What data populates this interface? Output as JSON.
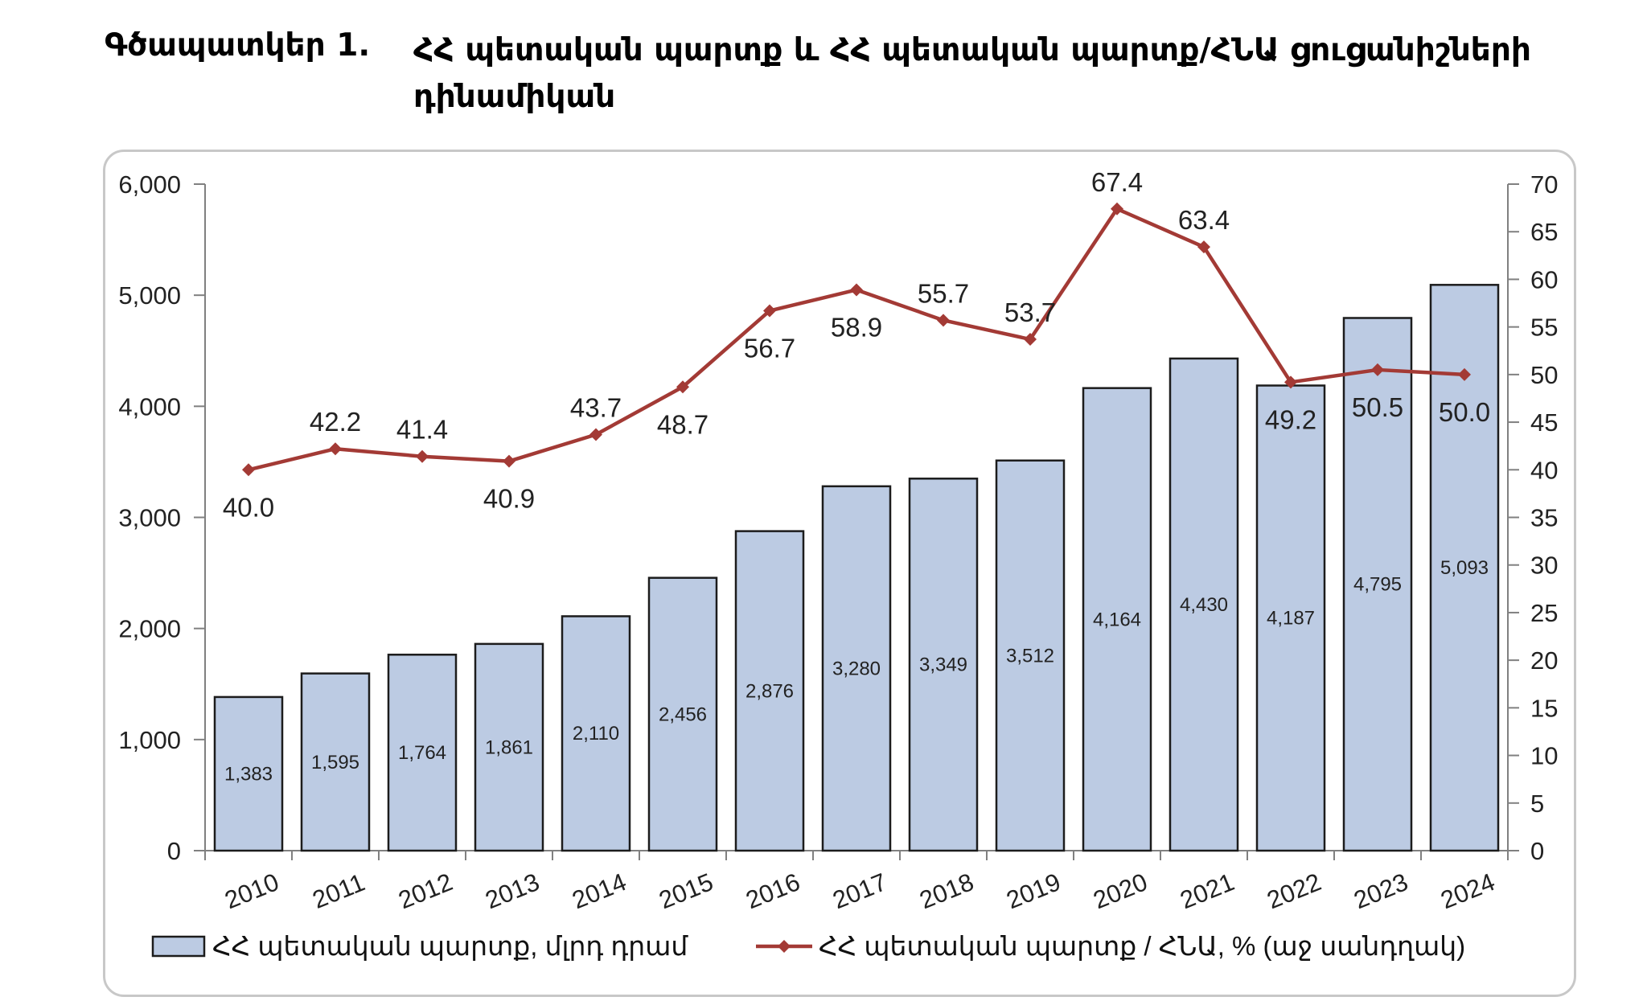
{
  "figure": {
    "label": "Գծապատկեր 1.",
    "title": "ՀՀ պետական պարտք և ՀՀ պետական պարտք/ՀՆԱ ցուցանիշների դինամիկան"
  },
  "colors": {
    "bar_fill": "#bccbe3",
    "bar_stroke": "#1c1c1c",
    "line": "#a33a35",
    "axis": "#808080",
    "frame": "#c8c8c8"
  },
  "chart_data": {
    "type": "bar+line",
    "categories": [
      "2010",
      "2011",
      "2012",
      "2013",
      "2014",
      "2015",
      "2016",
      "2017",
      "2018",
      "2019",
      "2020",
      "2021",
      "2022",
      "2023",
      "2024"
    ],
    "series": [
      {
        "name": "ՀՀ պետական պարտք, մլրդ դրամ",
        "type": "bar",
        "axis": "left",
        "values": [
          1383,
          1595,
          1764,
          1861,
          2110,
          2456,
          2876,
          3280,
          3349,
          3512,
          4164,
          4430,
          4187,
          4795,
          5093
        ],
        "labels": [
          "1,383",
          "1,595",
          "1,764",
          "1,861",
          "2,110",
          "2,456",
          "2,876",
          "3,280",
          "3,349",
          "3,512",
          "4,164",
          "4,430",
          "4,187",
          "4,795",
          "5,093"
        ]
      },
      {
        "name": "ՀՀ պետական պարտք / ՀՆԱ, % (աջ սանդղակ)",
        "type": "line",
        "axis": "right",
        "values": [
          40.0,
          42.2,
          41.4,
          40.9,
          43.7,
          48.7,
          56.7,
          58.9,
          55.7,
          53.7,
          67.4,
          63.4,
          49.2,
          50.5,
          50.0
        ],
        "labels": [
          "40.0",
          "42.2",
          "41.4",
          "40.9",
          "43.7",
          "48.7",
          "56.7",
          "58.9",
          "55.7",
          "53.7",
          "67.4",
          "63.4",
          "49.2",
          "50.5",
          "50.0"
        ]
      }
    ],
    "y_left": {
      "min": 0,
      "max": 6000,
      "ticks": [
        0,
        1000,
        2000,
        3000,
        4000,
        5000,
        6000
      ],
      "tick_labels": [
        "0",
        "1,000",
        "2,000",
        "3,000",
        "4,000",
        "5,000",
        "6,000"
      ]
    },
    "y_right": {
      "min": 0,
      "max": 70,
      "ticks": [
        0,
        5,
        10,
        15,
        20,
        25,
        30,
        35,
        40,
        45,
        50,
        55,
        60,
        65,
        70
      ],
      "tick_labels": [
        "0",
        "5",
        "10",
        "15",
        "20",
        "25",
        "30",
        "35",
        "40",
        "45",
        "50",
        "55",
        "60",
        "65",
        "70"
      ]
    },
    "legend": {
      "position": "bottom",
      "items": [
        "ՀՀ պետական պարտք, մլրդ դրամ",
        "ՀՀ պետական պարտք / ՀՆԱ, % (աջ սանդղակ)"
      ]
    }
  }
}
